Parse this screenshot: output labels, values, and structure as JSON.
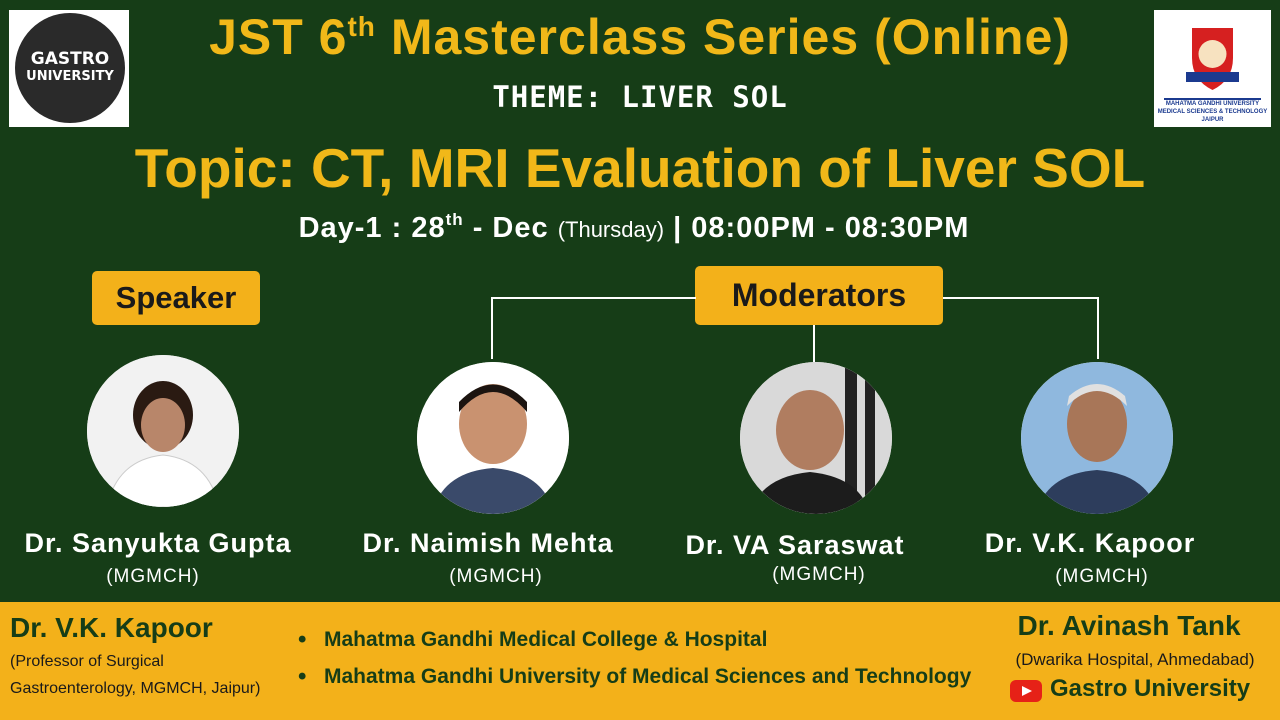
{
  "logo_left": {
    "line1": "GASTRO",
    "line2": "UNIVERSITY"
  },
  "logo_right": {
    "line1": "MAHATMA GANDHI UNIVERSITY",
    "line2": "MEDICAL SCIENCES & TECHNOLOGY",
    "line3": "JAIPUR"
  },
  "title": {
    "prefix": "JST 6",
    "sup": "th",
    "suffix": "Masterclass Series (Online)"
  },
  "theme": "THEME: LIVER SOL",
  "topic": "Topic: CT, MRI Evaluation of Liver SOL",
  "date": {
    "day": "Day-1 : 28",
    "sup": "th",
    "month": "- Dec",
    "weekday": "(Thursday)",
    "time": "| 08:00PM - 08:30PM"
  },
  "speaker_label": "Speaker",
  "moderators_label": "Moderators",
  "people": [
    {
      "name": "Dr. Sanyukta Gupta",
      "inst": "(MGMCH)"
    },
    {
      "name": "Dr. Naimish Mehta",
      "inst": "(MGMCH)"
    },
    {
      "name": "Dr. VA Saraswat",
      "inst": "(MGMCH)"
    },
    {
      "name": "Dr. V.K. Kapoor",
      "inst": "(MGMCH)"
    }
  ],
  "footer": {
    "left_name": "Dr. V.K. Kapoor",
    "left_line1": "(Professor of Surgical",
    "left_line2": "Gastroenterology, MGMCH, Jaipur)",
    "bullets": [
      "Mahatma Gandhi Medical College & Hospital",
      "Mahatma Gandhi University of Medical Sciences and Technology"
    ],
    "right_name": "Dr. Avinash Tank",
    "right_line": "(Dwarika Hospital, Ahmedabad)",
    "channel": "Gastro University"
  },
  "colors": {
    "background": "#163d17",
    "accent": "#f1b819",
    "badge": "#f3b11a",
    "youtube": "#e62117"
  }
}
